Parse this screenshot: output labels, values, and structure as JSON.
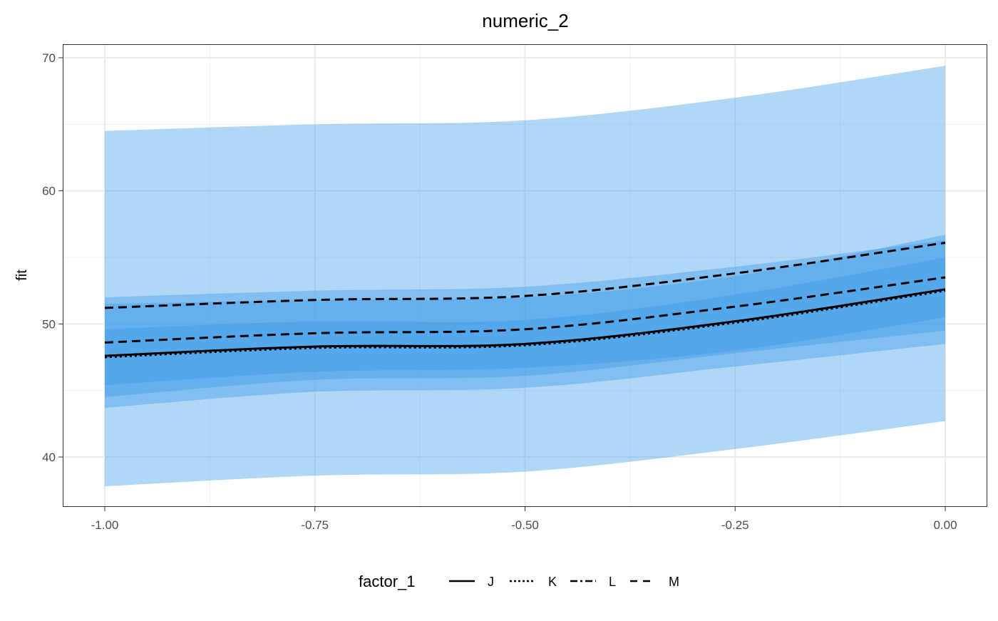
{
  "chart_data": {
    "type": "line",
    "title": "numeric_2",
    "xlabel": "",
    "ylabel": "fit",
    "xlim": [
      -1.1,
      0.1
    ],
    "ylim": [
      36.3,
      72.4
    ],
    "x_ticks": [
      -1.0,
      -0.75,
      -0.5,
      -0.25,
      0.0
    ],
    "x_tick_labels": [
      "-1.00",
      "-0.75",
      "-0.50",
      "-0.25",
      "0.00"
    ],
    "y_ticks": [
      40,
      50,
      60,
      70
    ],
    "y_tick_labels": [
      "40",
      "50",
      "60",
      "70"
    ],
    "grid": true,
    "legend": {
      "title": "factor_1",
      "placement": "bottom"
    },
    "band_color": "#3d9be9",
    "x": [
      -1.0,
      -0.75,
      -0.5,
      -0.25,
      0.0
    ],
    "series": [
      {
        "name": "J",
        "linetype": "solid",
        "values": [
          47.6,
          48.3,
          48.5,
          50.2,
          52.6
        ],
        "lower": [
          43.7,
          44.9,
          45.2,
          46.8,
          48.5
        ],
        "upper": [
          51.5,
          51.8,
          52.0,
          53.6,
          56.7
        ]
      },
      {
        "name": "K",
        "linetype": "dotted",
        "values": [
          47.5,
          48.2,
          48.4,
          50.1,
          52.5
        ],
        "lower": [
          45.4,
          46.4,
          46.7,
          48.0,
          50.5
        ],
        "upper": [
          49.6,
          50.2,
          50.3,
          52.2,
          55.0
        ]
      },
      {
        "name": "L",
        "linetype": "dotdash",
        "values": [
          48.6,
          49.3,
          49.6,
          51.3,
          53.5
        ],
        "lower": [
          44.5,
          45.8,
          46.1,
          47.8,
          49.5
        ],
        "upper": [
          52.0,
          52.5,
          52.8,
          54.3,
          56.3
        ]
      },
      {
        "name": "M",
        "linetype": "dashed",
        "values": [
          51.2,
          51.8,
          52.1,
          53.8,
          56.1
        ],
        "lower": [
          37.8,
          38.6,
          38.9,
          40.6,
          42.7
        ],
        "upper": [
          64.5,
          65.0,
          65.3,
          67.0,
          69.4
        ]
      }
    ]
  }
}
